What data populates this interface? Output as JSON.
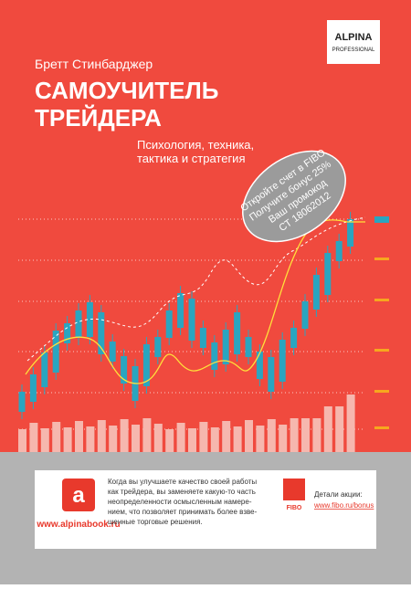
{
  "logo": {
    "name": "ALPINA",
    "sub": "PROFESSIONAL"
  },
  "author": "Бретт Стинбарджер",
  "title": [
    "САМОУЧИТЕЛЬ",
    "ТРЕЙДЕРА"
  ],
  "subtitle": [
    "Психология, техника,",
    "тактика и стратегия"
  ],
  "badge": [
    "Откройте счет в FIBO",
    "Получите бонус 25%",
    "Ваш промокод",
    "СТ 18062012"
  ],
  "footer": {
    "site": "www.alpinabook.ru",
    "text": [
      "Когда вы улучшаете качество своей работы",
      "как трейдера, вы заменяете какую-то часть",
      "неопределенности осмысленным намере-",
      "нием, что позволяет принимать более взве-",
      "шенные торговые решения."
    ],
    "fibo": "FIBO",
    "details": "Детали акции:",
    "link": "www.fibo.ru/bonus"
  }
}
